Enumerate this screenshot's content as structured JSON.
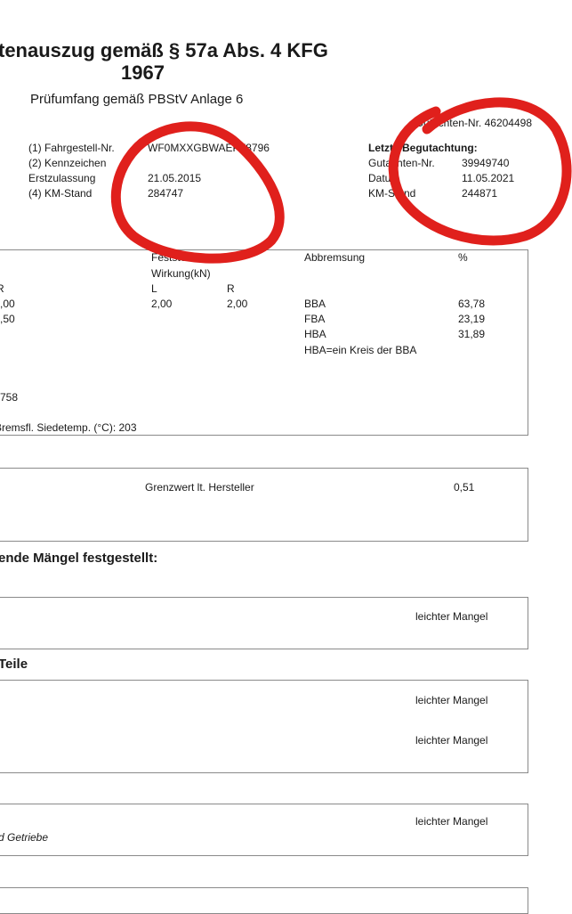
{
  "header": {
    "title_line1": "tenauszug gemäß § 57a Abs. 4 KFG",
    "title_line2": "1967",
    "subtitle": "Prüfumfang gemäß PBStV Anlage 6",
    "gutachten_nr": "Gutachten-Nr. 46204498"
  },
  "vehicle": [
    {
      "label": "(1) Fahrgestell-Nr.",
      "value": "WF0MXXGBWAEP78796"
    },
    {
      "label": "(2) Kennzeichen",
      "value": ""
    },
    {
      "label": "Erstzulassung",
      "value": "21.05.2015"
    },
    {
      "label": "(4) KM-Stand",
      "value": "284747"
    }
  ],
  "last_inspection": {
    "heading": "Letzte Begutachtung:",
    "rows": [
      {
        "label": "Gutachten-Nr.",
        "value": "39949740"
      },
      {
        "label": "Datum",
        "value": "11.05.2021"
      },
      {
        "label": "KM-Stand",
        "value": "244871"
      }
    ]
  },
  "brakes": {
    "park_brake_label": "Feststellbremse",
    "effect_label": "Wirkung(kN)",
    "col_l": "L",
    "col_r": "R",
    "left_col_r": "R",
    "left_val1": ",00",
    "left_val2": ",50",
    "park_l": "2,00",
    "park_r": "2,00",
    "abbremsung_label": "Abbremsung",
    "percent_label": "%",
    "rows": [
      {
        "label": "BBA",
        "value": "63,78"
      },
      {
        "label": "FBA",
        "value": "23,19"
      },
      {
        "label": "HBA",
        "value": "31,89"
      }
    ],
    "note": "HBA=ein Kreis der BBA",
    "partial_value": "758",
    "boiling_temp": "Bremsfl. Siedetemp. (°C): 203"
  },
  "limit": {
    "label": "Grenzwert lt. Hersteller",
    "value": "0,51"
  },
  "defects_heading": "ende Mängel festgestellt:",
  "defect_box1": {
    "status": "leichter Mangel"
  },
  "teile_heading": "Teile",
  "defect_box2": {
    "status1": "leichter Mangel",
    "status2": "leichter Mangel"
  },
  "defect_box3": {
    "status": "leichter Mangel",
    "text": "d Getriebe"
  },
  "annotation_color": "#e0201c"
}
